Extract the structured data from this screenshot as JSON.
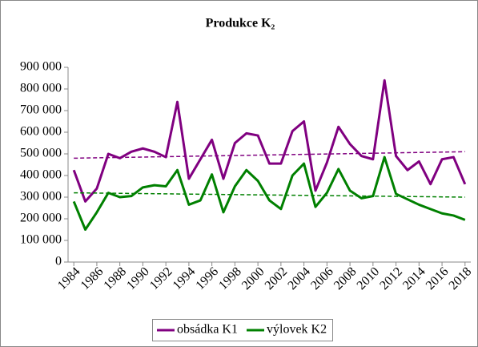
{
  "chart_data": {
    "type": "line",
    "title": "Produkce K₂",
    "x": [
      1984,
      1985,
      1986,
      1987,
      1988,
      1989,
      1990,
      1991,
      1992,
      1993,
      1994,
      1995,
      1996,
      1997,
      1998,
      1999,
      2000,
      2001,
      2002,
      2003,
      2004,
      2005,
      2006,
      2007,
      2008,
      2009,
      2010,
      2011,
      2012,
      2013,
      2014,
      2015,
      2016,
      2017,
      2018
    ],
    "xlim": [
      1983.5,
      2018.5
    ],
    "xticks": [
      1984,
      1986,
      1988,
      1990,
      1992,
      1994,
      1996,
      1998,
      2000,
      2002,
      2004,
      2006,
      2008,
      2010,
      2012,
      2014,
      2016,
      2018
    ],
    "ylim": [
      0,
      900000
    ],
    "yticks": [
      0,
      {
        "value": 100000,
        "label": "100 000"
      },
      {
        "value": 200000,
        "label": "200 000"
      },
      {
        "value": 300000,
        "label": "300 000"
      },
      {
        "value": 400000,
        "label": "400 000"
      },
      {
        "value": 500000,
        "label": "500 000"
      },
      {
        "value": 600000,
        "label": "600 000"
      },
      {
        "value": 700000,
        "label": "700 000"
      },
      {
        "value": 800000,
        "label": "800 000"
      },
      {
        "value": 900000,
        "label": "900 000"
      }
    ],
    "grid": false,
    "legend": "bottom",
    "series": [
      {
        "name": "obsádka K1",
        "color": "#800080",
        "trend": [
          480000,
          510000
        ],
        "values": [
          425000,
          280000,
          340000,
          500000,
          480000,
          510000,
          525000,
          510000,
          485000,
          740000,
          385000,
          475000,
          565000,
          385000,
          550000,
          595000,
          585000,
          455000,
          455000,
          605000,
          650000,
          330000,
          460000,
          625000,
          545000,
          490000,
          475000,
          840000,
          490000,
          425000,
          465000,
          360000,
          475000,
          485000,
          360000
        ]
      },
      {
        "name": "výlovek K2",
        "color": "#008000",
        "trend": [
          320000,
          300000
        ],
        "values": [
          280000,
          150000,
          230000,
          320000,
          300000,
          305000,
          345000,
          355000,
          350000,
          425000,
          265000,
          285000,
          405000,
          230000,
          350000,
          425000,
          375000,
          285000,
          245000,
          400000,
          455000,
          255000,
          320000,
          430000,
          330000,
          295000,
          305000,
          485000,
          315000,
          290000,
          265000,
          245000,
          225000,
          215000,
          195000
        ]
      }
    ]
  }
}
